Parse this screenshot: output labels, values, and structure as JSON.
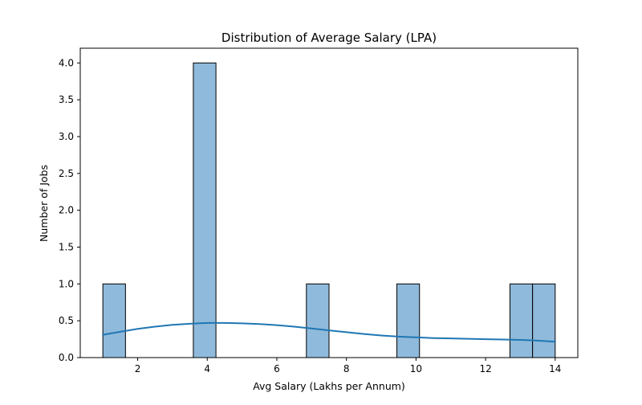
{
  "chart_data": {
    "type": "histogram",
    "title": "Distribution of Average Salary (LPA)",
    "xlabel": "Avg Salary (Lakhs per Annum)",
    "ylabel": "Number of Jobs",
    "xlim": [
      0.35,
      14.65
    ],
    "ylim": [
      0,
      4.2
    ],
    "xticks": [
      2,
      4,
      6,
      8,
      10,
      12,
      14
    ],
    "yticks": [
      0.0,
      0.5,
      1.0,
      1.5,
      2.0,
      2.5,
      3.0,
      3.5,
      4.0
    ],
    "ytick_labels": [
      "0.0",
      "0.5",
      "1.0",
      "1.5",
      "2.0",
      "2.5",
      "3.0",
      "3.5",
      "4.0"
    ],
    "bins": [
      {
        "x0": 1.0,
        "x1": 1.65,
        "count": 1
      },
      {
        "x0": 3.6,
        "x1": 4.25,
        "count": 4
      },
      {
        "x0": 6.85,
        "x1": 7.5,
        "count": 1
      },
      {
        "x0": 9.45,
        "x1": 10.1,
        "count": 1
      },
      {
        "x0": 12.7,
        "x1": 13.35,
        "count": 1
      },
      {
        "x0": 13.35,
        "x1": 14.0,
        "count": 1
      }
    ],
    "kde": {
      "x": [
        1.0,
        1.5,
        2.0,
        2.5,
        3.0,
        3.5,
        4.0,
        4.5,
        5.0,
        5.5,
        6.0,
        6.5,
        7.0,
        7.5,
        8.0,
        8.5,
        9.0,
        9.5,
        10.0,
        10.5,
        11.0,
        11.5,
        12.0,
        12.5,
        13.0,
        13.5,
        14.0
      ],
      "y": [
        0.31,
        0.35,
        0.39,
        0.42,
        0.445,
        0.46,
        0.47,
        0.47,
        0.465,
        0.455,
        0.44,
        0.42,
        0.395,
        0.37,
        0.345,
        0.32,
        0.3,
        0.285,
        0.275,
        0.265,
        0.26,
        0.255,
        0.25,
        0.245,
        0.24,
        0.23,
        0.215
      ]
    },
    "grid": false,
    "colors": {
      "bar_fill": "#8fbadb",
      "bar_edge": "#000000",
      "kde_line": "#1f77b4"
    }
  }
}
